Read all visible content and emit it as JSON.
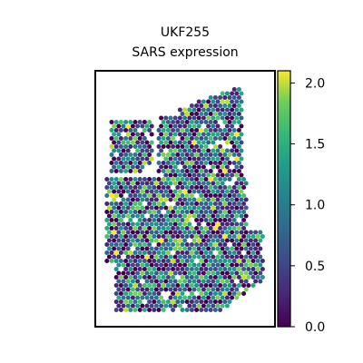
{
  "chart_data": {
    "type": "scatter",
    "title": "UKF255",
    "subtitle": "SARS expression",
    "xlabel": "",
    "ylabel": "",
    "colorbar": {
      "colormap": "viridis",
      "range": [
        0.0,
        2.1
      ],
      "ticks": [
        {
          "value": 0.0,
          "label": "0.0"
        },
        {
          "value": 0.5,
          "label": "0.5"
        },
        {
          "value": 1.0,
          "label": "1.0"
        },
        {
          "value": 1.5,
          "label": "1.5"
        },
        {
          "value": 2.0,
          "label": "2.0"
        }
      ]
    },
    "axes": {
      "xticks": false,
      "yticks": false,
      "grid": false
    },
    "colors": {
      "viridis_low": "#440154",
      "viridis_mid": "#21918c",
      "viridis_high": "#fde725"
    }
  }
}
